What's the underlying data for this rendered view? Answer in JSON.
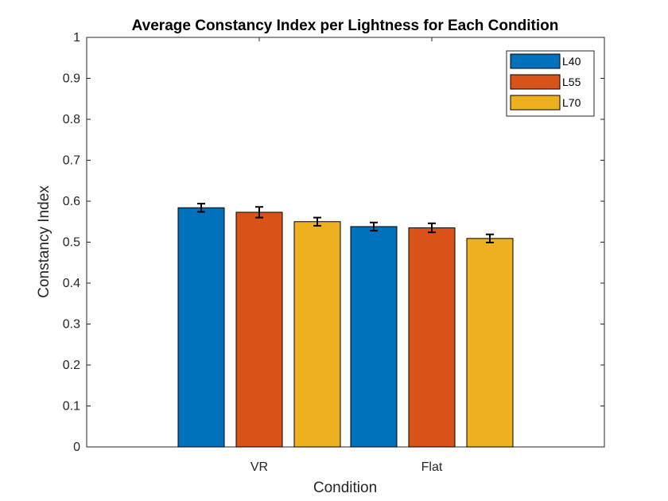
{
  "chart_data": {
    "type": "bar",
    "title": "Average Constancy Index per Lightness for Each Condition",
    "xlabel": "Condition",
    "ylabel": "Constancy Index",
    "categories": [
      "VR",
      "Flat"
    ],
    "ylim": [
      0,
      1
    ],
    "yticks": [
      0,
      0.1,
      0.2,
      0.3,
      0.4,
      0.5,
      0.6,
      0.7,
      0.8,
      0.9,
      1
    ],
    "ytick_labels": [
      "0",
      "0.1",
      "0.2",
      "0.3",
      "0.4",
      "0.5",
      "0.6",
      "0.7",
      "0.8",
      "0.9",
      "1"
    ],
    "grid": false,
    "legend_position": "top-right",
    "series": [
      {
        "name": "L40",
        "color": "#0072BD",
        "values": [
          0.584,
          0.538
        ],
        "errors": [
          0.01,
          0.01
        ]
      },
      {
        "name": "L55",
        "color": "#D95319",
        "values": [
          0.573,
          0.535
        ],
        "errors": [
          0.013,
          0.011
        ]
      },
      {
        "name": "L70",
        "color": "#EDB120",
        "values": [
          0.55,
          0.509
        ],
        "errors": [
          0.01,
          0.01
        ]
      }
    ]
  }
}
